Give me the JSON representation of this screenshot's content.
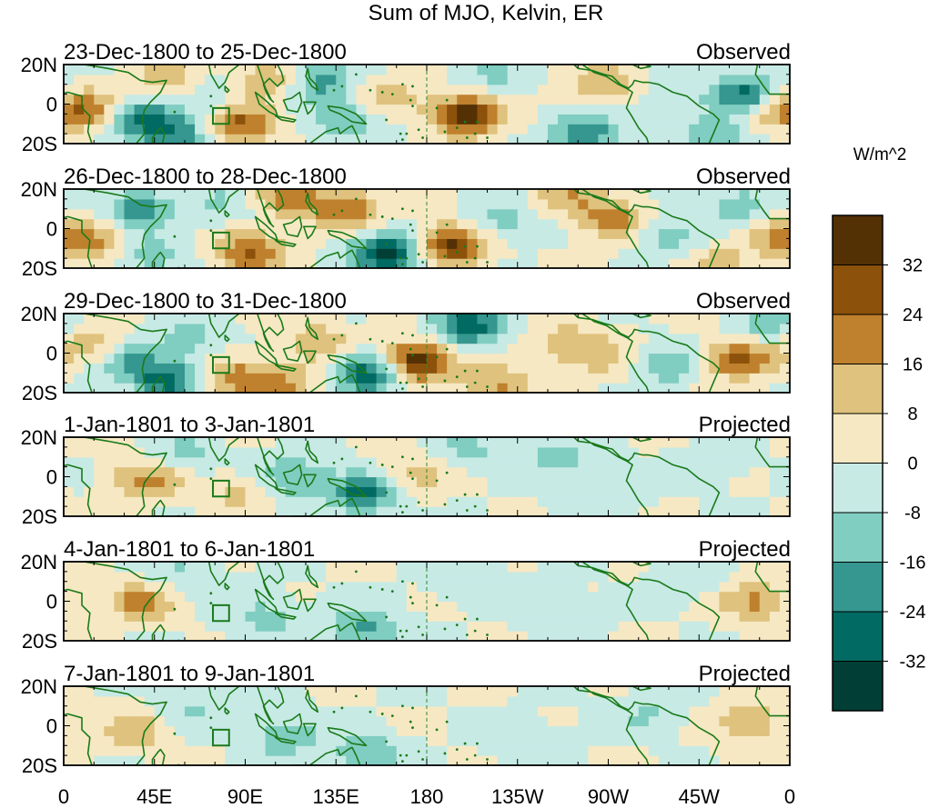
{
  "chart_data": {
    "type": "heatmap",
    "title": "Sum of MJO, Kelvin, ER",
    "units_label": "W/m^2",
    "lat_range": [
      -20,
      20
    ],
    "lon_range": [
      0,
      360
    ],
    "y_tick_labels": [
      "20N",
      "0",
      "20S"
    ],
    "x_tick_labels": [
      "0",
      "45E",
      "90E",
      "135E",
      "180",
      "135W",
      "90W",
      "45W",
      "0"
    ],
    "colorbar": {
      "levels": [
        -32,
        -24,
        -16,
        -8,
        0,
        8,
        16,
        24,
        32
      ],
      "tick_labels": [
        "32",
        "24",
        "16",
        "8",
        "0",
        "-8",
        "-16",
        "-24",
        "-32"
      ],
      "colors": [
        "#013e35",
        "#016a62",
        "#35978f",
        "#80cdc1",
        "#c7eae5",
        "#f6e8c3",
        "#dfc27d",
        "#bf812d",
        "#8c510a",
        "#543005"
      ]
    },
    "panels": [
      {
        "date_range": "23-Dec-1800 to 25-Dec-1800",
        "kind": "Observed",
        "anomalies": [
          {
            "lon": 15,
            "lat": -3,
            "value": 22
          },
          {
            "lon": 35,
            "lat": -6,
            "value": -26
          },
          {
            "lon": 50,
            "lat": 12,
            "value": 14
          },
          {
            "lon": 55,
            "lat": -16,
            "value": -24
          },
          {
            "lon": 72,
            "lat": 4,
            "value": -9
          },
          {
            "lon": 88,
            "lat": -10,
            "value": 26
          },
          {
            "lon": 100,
            "lat": 12,
            "value": 16
          },
          {
            "lon": 128,
            "lat": 12,
            "value": -20
          },
          {
            "lon": 140,
            "lat": -8,
            "value": -16
          },
          {
            "lon": 160,
            "lat": 4,
            "value": 12
          },
          {
            "lon": 200,
            "lat": -5,
            "value": 38
          },
          {
            "lon": 212,
            "lat": 15,
            "value": -10
          },
          {
            "lon": 258,
            "lat": -14,
            "value": -24
          },
          {
            "lon": 268,
            "lat": 10,
            "value": 16
          },
          {
            "lon": 300,
            "lat": 2,
            "value": -9
          },
          {
            "lon": 324,
            "lat": -16,
            "value": -14
          },
          {
            "lon": 340,
            "lat": 5,
            "value": -30
          },
          {
            "lon": 352,
            "lat": -2,
            "value": 20
          }
        ]
      },
      {
        "date_range": "26-Dec-1800 to 28-Dec-1800",
        "kind": "Observed",
        "anomalies": [
          {
            "lon": 12,
            "lat": -6,
            "value": 16
          },
          {
            "lon": 38,
            "lat": 10,
            "value": -20
          },
          {
            "lon": 45,
            "lat": -14,
            "value": -12
          },
          {
            "lon": 78,
            "lat": 12,
            "value": -9
          },
          {
            "lon": 92,
            "lat": -12,
            "value": 26
          },
          {
            "lon": 112,
            "lat": 16,
            "value": 20
          },
          {
            "lon": 140,
            "lat": 10,
            "value": 22
          },
          {
            "lon": 160,
            "lat": -12,
            "value": -36
          },
          {
            "lon": 192,
            "lat": -8,
            "value": 34
          },
          {
            "lon": 218,
            "lat": 5,
            "value": -12
          },
          {
            "lon": 250,
            "lat": 16,
            "value": 14
          },
          {
            "lon": 272,
            "lat": 5,
            "value": 20
          },
          {
            "lon": 300,
            "lat": -3,
            "value": -12
          },
          {
            "lon": 325,
            "lat": -16,
            "value": 10
          },
          {
            "lon": 335,
            "lat": 12,
            "value": -12
          },
          {
            "lon": 355,
            "lat": -5,
            "value": 14
          }
        ]
      },
      {
        "date_range": "29-Dec-1800 to 31-Dec-1800",
        "kind": "Observed",
        "anomalies": [
          {
            "lon": 12,
            "lat": 4,
            "value": 14
          },
          {
            "lon": 32,
            "lat": -5,
            "value": -16
          },
          {
            "lon": 52,
            "lat": -14,
            "value": -26
          },
          {
            "lon": 62,
            "lat": 8,
            "value": -12
          },
          {
            "lon": 86,
            "lat": -12,
            "value": 20
          },
          {
            "lon": 110,
            "lat": -16,
            "value": 16
          },
          {
            "lon": 125,
            "lat": 6,
            "value": 14
          },
          {
            "lon": 152,
            "lat": -10,
            "value": -32
          },
          {
            "lon": 175,
            "lat": -4,
            "value": 40
          },
          {
            "lon": 200,
            "lat": 14,
            "value": -30
          },
          {
            "lon": 215,
            "lat": -16,
            "value": 18
          },
          {
            "lon": 250,
            "lat": 5,
            "value": 14
          },
          {
            "lon": 268,
            "lat": -3,
            "value": 10
          },
          {
            "lon": 300,
            "lat": -6,
            "value": -14
          },
          {
            "lon": 335,
            "lat": -3,
            "value": 26
          },
          {
            "lon": 350,
            "lat": 14,
            "value": -12
          }
        ]
      },
      {
        "date_range": "1-Jan-1801 to 3-Jan-1801",
        "kind": "Projected",
        "anomalies": [
          {
            "lon": 40,
            "lat": -2,
            "value": 20
          },
          {
            "lon": 60,
            "lat": 12,
            "value": -10
          },
          {
            "lon": 85,
            "lat": -8,
            "value": 10
          },
          {
            "lon": 115,
            "lat": 0,
            "value": -18
          },
          {
            "lon": 148,
            "lat": -8,
            "value": -26
          },
          {
            "lon": 175,
            "lat": 2,
            "value": 12
          },
          {
            "lon": 200,
            "lat": 14,
            "value": -10
          },
          {
            "lon": 245,
            "lat": 10,
            "value": -12
          },
          {
            "lon": 265,
            "lat": -10,
            "value": -8
          },
          {
            "lon": 320,
            "lat": 6,
            "value": -6
          }
        ]
      },
      {
        "date_range": "4-Jan-1801 to 6-Jan-1801",
        "kind": "Projected",
        "anomalies": [
          {
            "lon": 38,
            "lat": 0,
            "value": 18
          },
          {
            "lon": 58,
            "lat": 14,
            "value": -9
          },
          {
            "lon": 100,
            "lat": -8,
            "value": -12
          },
          {
            "lon": 150,
            "lat": -14,
            "value": -20
          },
          {
            "lon": 200,
            "lat": 12,
            "value": -8
          },
          {
            "lon": 245,
            "lat": -5,
            "value": -7
          },
          {
            "lon": 310,
            "lat": 10,
            "value": -8
          },
          {
            "lon": 342,
            "lat": 0,
            "value": 18
          }
        ]
      },
      {
        "date_range": "7-Jan-1801 to 9-Jan-1801",
        "kind": "Projected",
        "anomalies": [
          {
            "lon": 35,
            "lat": -2,
            "value": 14
          },
          {
            "lon": 62,
            "lat": 10,
            "value": -9
          },
          {
            "lon": 110,
            "lat": -6,
            "value": -14
          },
          {
            "lon": 150,
            "lat": -14,
            "value": -16
          },
          {
            "lon": 230,
            "lat": -8,
            "value": -8
          },
          {
            "lon": 290,
            "lat": 6,
            "value": -9
          },
          {
            "lon": 340,
            "lat": 2,
            "value": 16
          }
        ]
      }
    ]
  }
}
